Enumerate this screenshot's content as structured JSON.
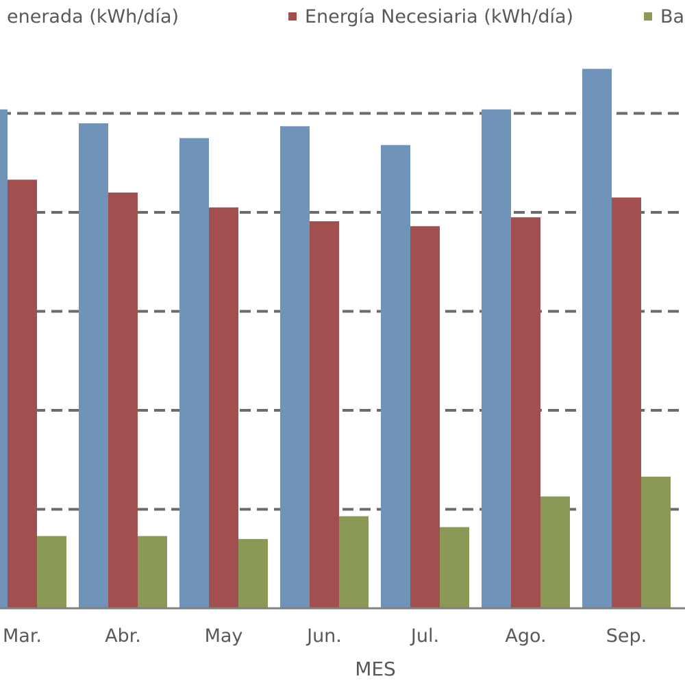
{
  "chart_data": {
    "type": "bar",
    "title": "",
    "xlabel": "MES",
    "ylabel": "",
    "categories": [
      "Mar.",
      "Abr.",
      "May",
      "Jun.",
      "Jul.",
      "Ago.",
      "Sep."
    ],
    "series": [
      {
        "name": "Energía Generada (kWh/día)",
        "visible_label": "enerada (kWh/día)",
        "color": "#7093b9",
        "values": [
          5.04,
          4.9,
          4.75,
          4.87,
          4.68,
          5.04,
          5.45
        ]
      },
      {
        "name": "Energía Necesiaria (kWh/día)",
        "visible_label": "Energía Necesiaria (kWh/día)",
        "color": "#a14f4f",
        "values": [
          4.33,
          4.2,
          4.05,
          3.91,
          3.86,
          3.95,
          4.15
        ]
      },
      {
        "name": "Ba",
        "visible_label": "Ba",
        "color": "#8a9a56",
        "values": [
          0.73,
          0.73,
          0.7,
          0.93,
          0.82,
          1.13,
          1.33
        ]
      }
    ],
    "ylim": [
      0,
      6
    ],
    "gridlines": [
      1,
      2,
      3,
      4,
      5
    ],
    "grid": true,
    "legend_position": "top"
  }
}
